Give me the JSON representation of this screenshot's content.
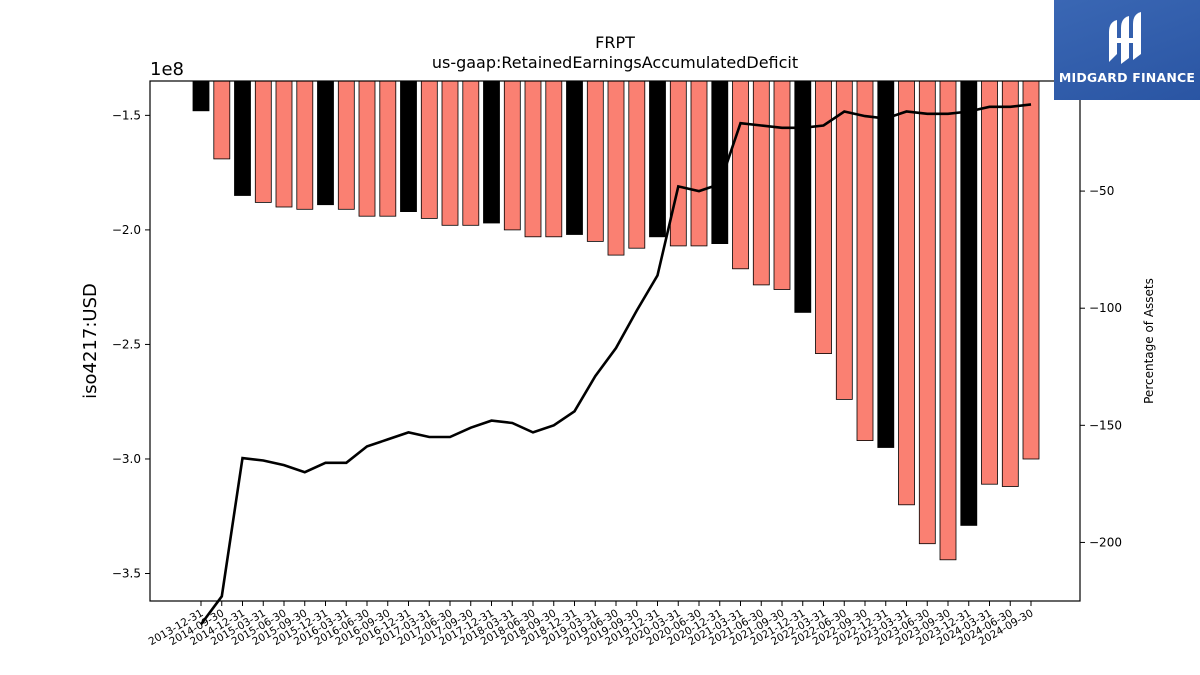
{
  "chart_data": {
    "type": "bar",
    "title": "FRPT",
    "subtitle": "us-gaap:RetainedEarningsAccumulatedDeficit",
    "ylabel": "iso4217:USD",
    "y2label": "Percentage of Assets",
    "y_scale_label": "1e8",
    "ylim": [
      -3.62,
      -1.35
    ],
    "y2lim": [
      -225,
      -3
    ],
    "yticks": [
      -1.5,
      -2.0,
      -2.5,
      -3.0,
      -3.5
    ],
    "ytick_labels": [
      "−1.5",
      "−2.0",
      "−2.5",
      "−3.0",
      "−3.5"
    ],
    "y2ticks": [
      -50,
      -100,
      -150,
      -200
    ],
    "y2tick_labels": [
      "−50",
      "−100",
      "−150",
      "−200"
    ],
    "categories": [
      "2013-12-31",
      "2014-09-30",
      "2014-12-31",
      "2015-03-31",
      "2015-06-30",
      "2015-09-30",
      "2015-12-31",
      "2016-03-31",
      "2016-06-30",
      "2016-09-30",
      "2016-12-31",
      "2017-03-31",
      "2017-06-30",
      "2017-09-30",
      "2017-12-31",
      "2018-03-31",
      "2018-06-30",
      "2018-09-30",
      "2018-12-31",
      "2019-03-31",
      "2019-06-30",
      "2019-09-30",
      "2019-12-31",
      "2020-03-31",
      "2020-06-30",
      "2020-12-31",
      "2021-03-31",
      "2021-06-30",
      "2021-09-30",
      "2021-12-31",
      "2022-03-31",
      "2022-06-30",
      "2022-09-30",
      "2022-12-31",
      "2023-03-31",
      "2023-06-30",
      "2023-09-30",
      "2023-12-31",
      "2024-03-31",
      "2024-06-30",
      "2024-09-30"
    ],
    "series": [
      {
        "values": [
          -1.48,
          -1.69,
          -1.85,
          -1.88,
          -1.9,
          -1.91,
          -1.89,
          -1.91,
          -1.94,
          -1.94,
          -1.92,
          -1.95,
          -1.98,
          -1.98,
          -1.97,
          -2.0,
          -2.03,
          -2.03,
          -2.02,
          -2.05,
          -2.11,
          -2.08,
          -2.03,
          -2.07,
          -2.07,
          -2.06,
          -2.17,
          -2.24,
          -2.26,
          -2.36,
          -2.54,
          -2.74,
          -2.92,
          -2.95,
          -3.2,
          -3.37,
          -3.44,
          -3.29,
          -3.11,
          -3.12,
          -3.0
        ],
        "annual": [
          true,
          false,
          true,
          false,
          false,
          false,
          true,
          false,
          false,
          false,
          true,
          false,
          false,
          false,
          true,
          false,
          false,
          false,
          true,
          false,
          false,
          false,
          true,
          false,
          false,
          true,
          false,
          false,
          false,
          true,
          false,
          false,
          false,
          true,
          false,
          false,
          false,
          true,
          false,
          false,
          false
        ]
      },
      {
        "values": [
          -235,
          -223,
          -164,
          -165,
          -167,
          -170,
          -166,
          -166,
          -159,
          -156,
          -153,
          -155,
          -155,
          -151,
          -148,
          -149,
          -153,
          -150,
          -144,
          -129,
          -117,
          -101,
          -86,
          -48,
          -50,
          -47,
          -21,
          -22,
          -23,
          -23,
          -22,
          -16,
          -18,
          -19,
          -16,
          -17,
          -17,
          -16,
          -14,
          -14,
          -13
        ]
      }
    ],
    "colors": {
      "annual_bar": "#000000",
      "quarter_bar": "#fa8072",
      "bar_edge": "#000000",
      "line": "#000000"
    },
    "grid": false
  },
  "logo": {
    "text": "MIDGARD FINANCE",
    "icon": "midgard-logo-icon"
  }
}
